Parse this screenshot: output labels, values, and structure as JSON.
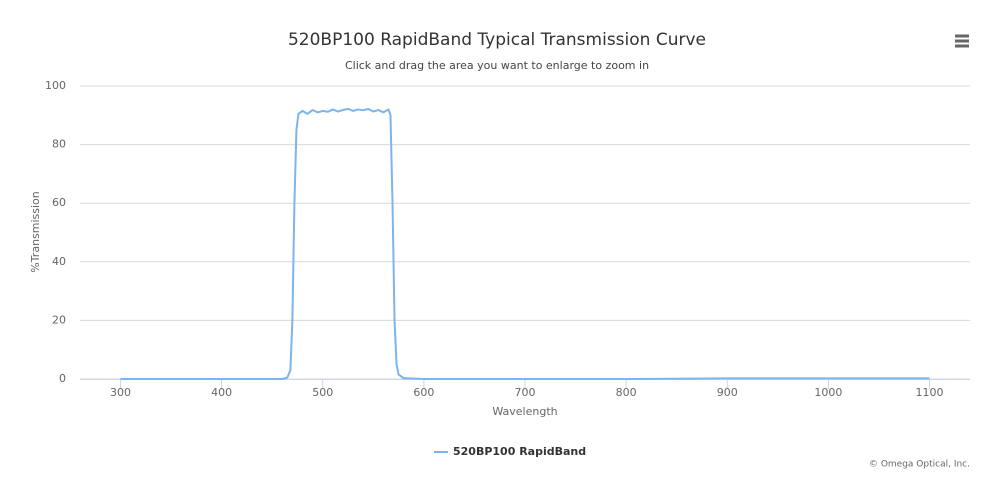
{
  "chart_data": {
    "type": "line",
    "title": "520BP100 RapidBand Typical Transmission Curve",
    "subtitle": "Click and drag the area you want to enlarge to zoom in",
    "x_label": "Wavelength",
    "y_label": "%Transmission",
    "credits": "© Omega Optical, Inc.",
    "x": [
      300,
      400,
      460,
      465,
      468,
      470,
      472,
      474,
      476,
      480,
      485,
      490,
      495,
      500,
      505,
      510,
      515,
      520,
      525,
      530,
      535,
      540,
      545,
      550,
      555,
      560,
      565,
      567,
      569,
      571,
      573,
      575,
      580,
      600,
      700,
      800,
      900,
      1000,
      1100
    ],
    "series": [
      {
        "name": "520BP100 RapidBand",
        "color": "#7cb5ec",
        "values": [
          0,
          0,
          0,
          0.5,
          3,
          20,
          60,
          85,
          90.5,
          91.5,
          90.5,
          91.8,
          91,
          91.5,
          91.2,
          92,
          91.3,
          91.8,
          92.2,
          91.5,
          92,
          91.7,
          92.2,
          91.3,
          91.8,
          91,
          92,
          90,
          60,
          20,
          5,
          1.5,
          0.3,
          0,
          0,
          0,
          0.2,
          0.2,
          0.2
        ]
      }
    ],
    "xlim": [
      260,
      1140
    ],
    "xticks": [
      300,
      400,
      500,
      600,
      700,
      800,
      900,
      1000,
      1100
    ],
    "ylim": [
      0,
      100
    ],
    "yticks": [
      0,
      20,
      40,
      60,
      80,
      100
    ],
    "grid": true,
    "legend": "bottom"
  }
}
